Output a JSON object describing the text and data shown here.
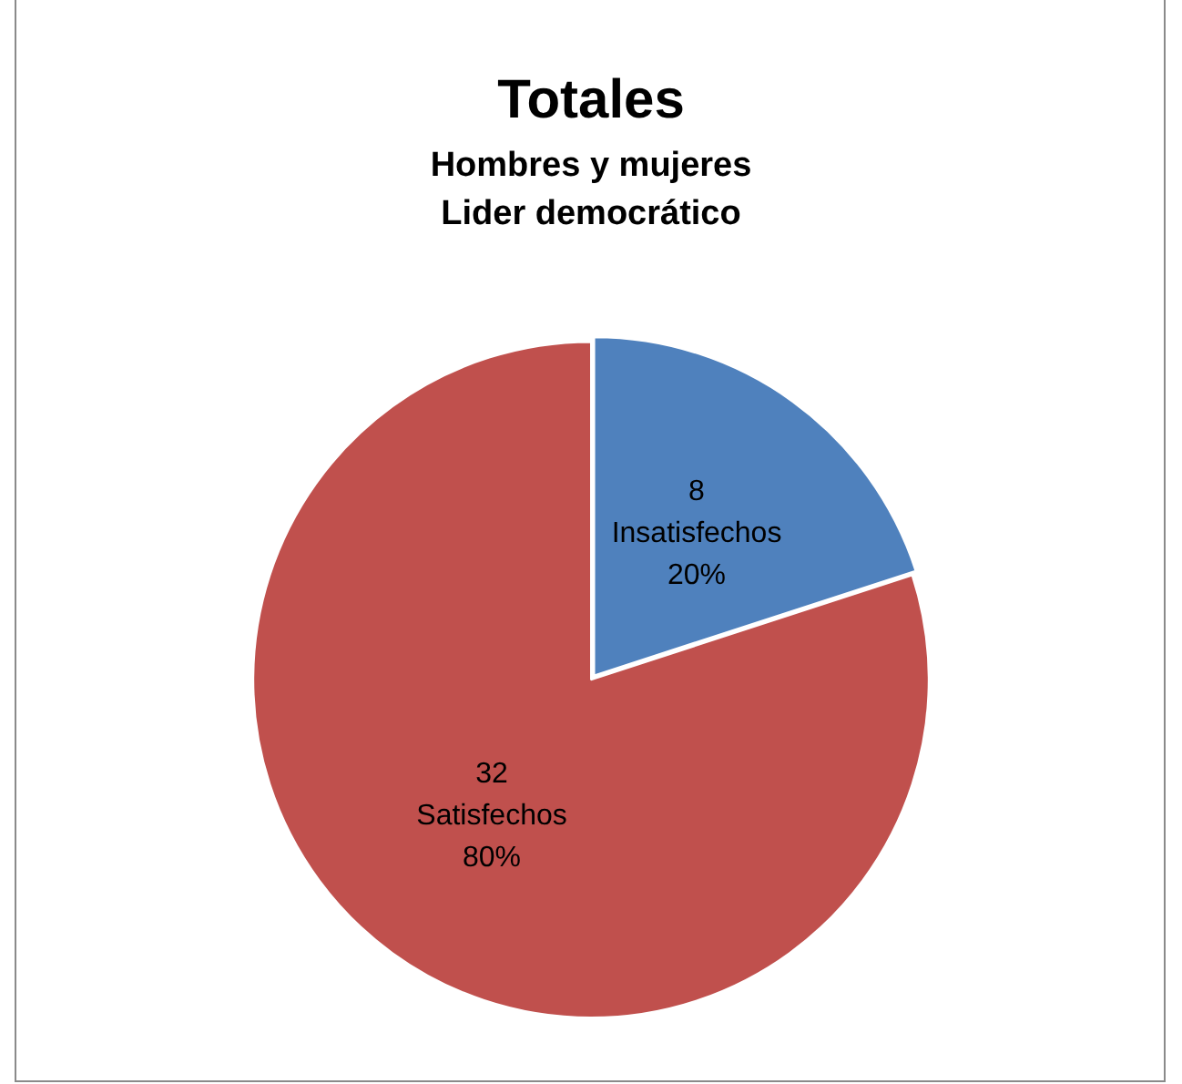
{
  "chart_data": {
    "type": "pie",
    "title": "Totales",
    "subtitle": "Hombres y mujeres\nLider democrático",
    "categories": [
      "Insatisfechos",
      "Satisfechos"
    ],
    "values": [
      8,
      32
    ],
    "colors": [
      "#4f81bd",
      "#c0504d"
    ],
    "data_labels": true,
    "annotations": [
      {
        "text": "20%",
        "x": "Insatisfechos"
      },
      {
        "text": "80%",
        "x": "Satisfechos"
      }
    ],
    "legend": false
  }
}
